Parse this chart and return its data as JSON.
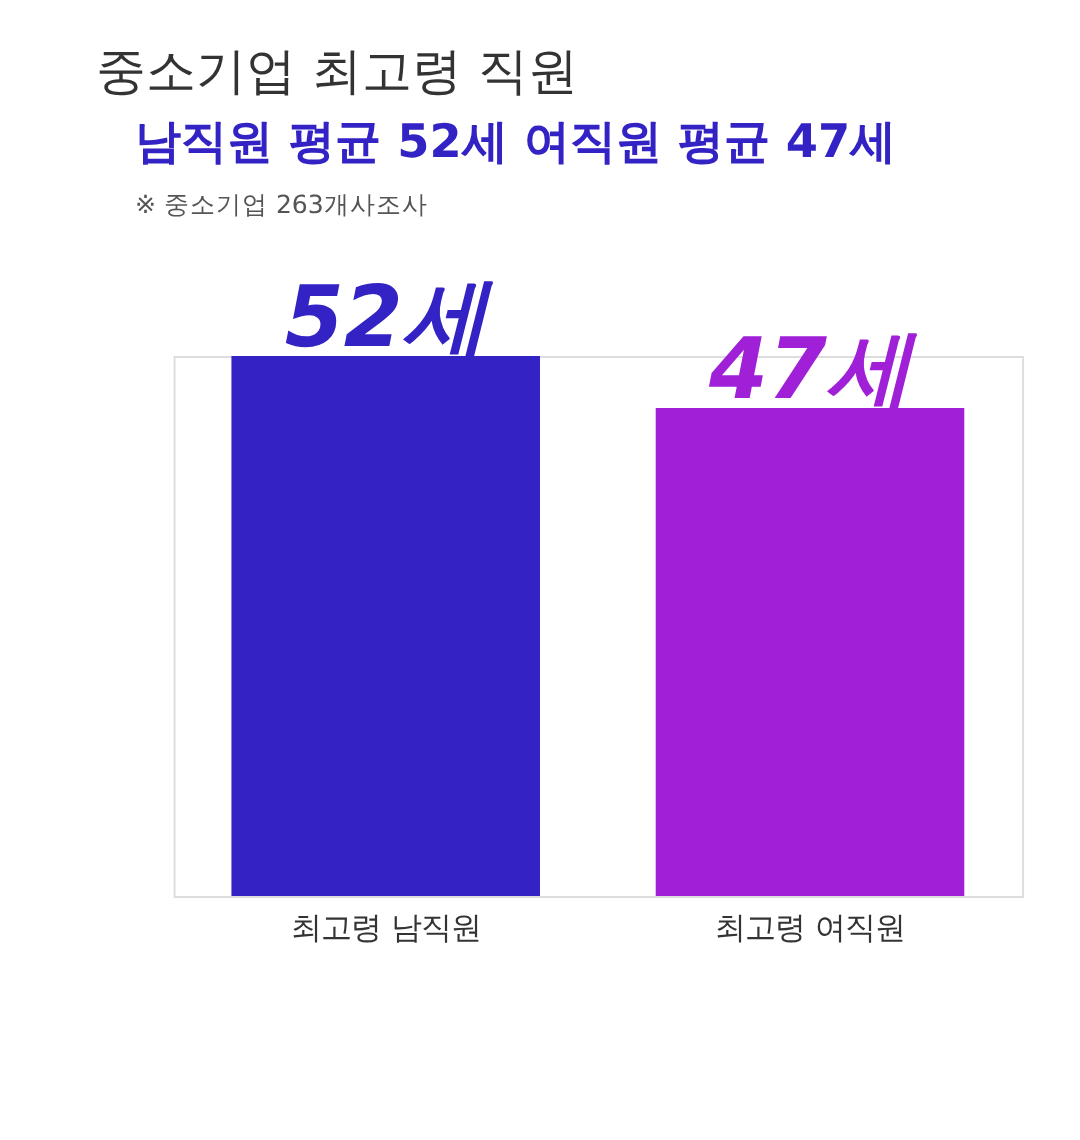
{
  "chart_data": {
    "type": "bar",
    "title": "중소기업 최고령 직원",
    "subtitle": "남직원 평균 52세 여직원 평균  47세",
    "annotations": [
      "※ 중소기업 263개사조사"
    ],
    "categories": [
      "최고령 남직원",
      "최고령 여직원"
    ],
    "values": [
      52,
      47
    ],
    "colors": [
      "#3322c4",
      "#a020d8"
    ],
    "value_labels": [
      "52세",
      "47세"
    ]
  }
}
